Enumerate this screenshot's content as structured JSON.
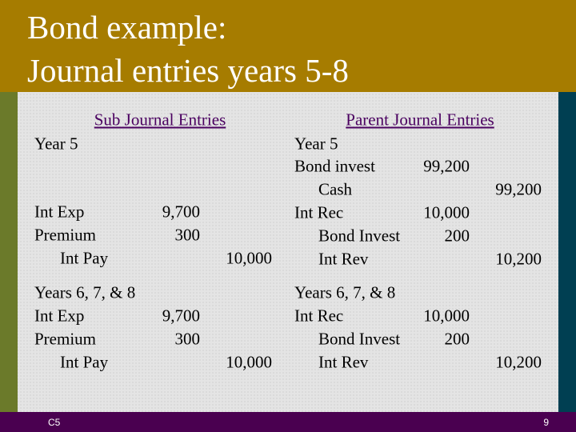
{
  "header": {
    "title_lines": [
      "Bond example:",
      "Journal entries years 5-8"
    ]
  },
  "sub": {
    "heading": "Sub Journal Entries",
    "sections": [
      {
        "label": "Year 5",
        "rows": [
          {
            "account": "Int Exp",
            "debit": "9,700"
          },
          {
            "account": "Premium",
            "debit": "300"
          },
          {
            "account": "Int Pay",
            "credit": "10,000",
            "indent": true
          }
        ]
      },
      {
        "label": "Years 6, 7, & 8",
        "rows": [
          {
            "account": "Int Exp",
            "debit": "9,700"
          },
          {
            "account": "Premium",
            "debit": "300"
          },
          {
            "account": "Int Pay",
            "credit": "10,000",
            "indent": true
          }
        ]
      }
    ]
  },
  "parent": {
    "heading": "Parent Journal Entries",
    "sections": [
      {
        "label": "Year 5",
        "rows": [
          {
            "account": "Bond invest",
            "debit": "99,200"
          },
          {
            "account": "Cash",
            "credit": "99,200",
            "indent": true
          },
          {
            "account": "Int Rec",
            "debit": "10,000"
          },
          {
            "account": "Bond Invest",
            "debit": "200",
            "indent": true
          },
          {
            "account": "Int Rev",
            "credit": "10,200",
            "indent": true
          }
        ]
      },
      {
        "label": "Years 6, 7, & 8",
        "rows": [
          {
            "account": "Int Rec",
            "debit": "10,000"
          },
          {
            "account": "Bond Invest",
            "debit": "200",
            "indent": true
          },
          {
            "account": "Int Rev",
            "credit": "10,200",
            "indent": true
          }
        ]
      }
    ]
  },
  "footer": {
    "left": "C5",
    "right": "9"
  }
}
